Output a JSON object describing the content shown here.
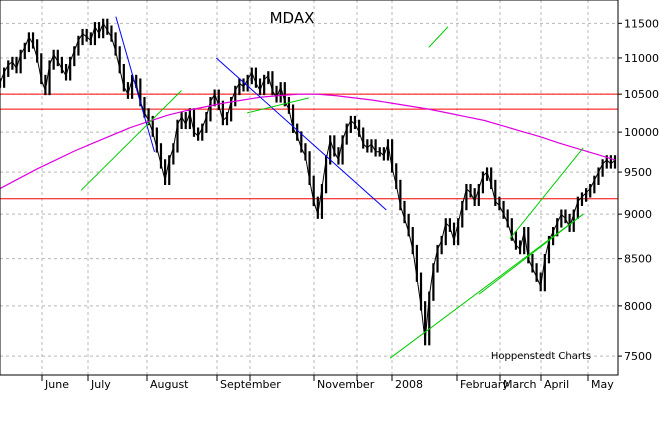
{
  "chart_data": {
    "type": "line",
    "title": "MDAX",
    "watermark": "Hoppenstedt Charts",
    "xlabel": "",
    "ylabel": "",
    "x_tick_labels": [
      "June",
      "July",
      "August",
      "September",
      "November",
      "2008",
      "February",
      "March",
      "April",
      "May"
    ],
    "y_ticks": [
      7500,
      8000,
      8500,
      9000,
      9500,
      10000,
      10500,
      11000,
      11500
    ],
    "ylim": [
      7320,
      11850
    ],
    "scale": "log",
    "grid": true,
    "series": [
      {
        "kind": "price-bars",
        "color": "#000000",
        "values": [
          10650,
          10800,
          10900,
          10950,
          10850,
          11050,
          11150,
          11300,
          11200,
          11000,
          10700,
          10550,
          10900,
          11050,
          10950,
          10850,
          10750,
          10950,
          11100,
          11250,
          11350,
          11300,
          11250,
          11450,
          11350,
          11500,
          11400,
          11300,
          11100,
          10850,
          10600,
          10500,
          10700,
          10650,
          10400,
          10250,
          10150,
          10000,
          9800,
          9600,
          9400,
          9650,
          9800,
          10100,
          10200,
          10100,
          10250,
          10000,
          9950,
          10050,
          10200,
          10400,
          10500,
          10350,
          10150,
          10200,
          10400,
          10550,
          10650,
          10600,
          10700,
          10800,
          10650,
          10550,
          10700,
          10750,
          10550,
          10450,
          10600,
          10400,
          10300,
          10050,
          9950,
          9800,
          9700,
          9400,
          9150,
          9000,
          9300,
          9650,
          9900,
          9750,
          9650,
          9900,
          10050,
          10150,
          10100,
          10000,
          9850,
          9800,
          9850,
          9750,
          9750,
          9700,
          9850,
          9550,
          9350,
          9100,
          8950,
          8800,
          8600,
          8300,
          8000,
          7650,
          8100,
          8400,
          8600,
          8700,
          8900,
          8850,
          8700,
          8900,
          9100,
          9300,
          9250,
          9150,
          9300,
          9450,
          9500,
          9350,
          9150,
          9100,
          9000,
          8900,
          8750,
          8650,
          8600,
          8800,
          8500,
          8400,
          8300,
          8200,
          8500,
          8700,
          8800,
          8900,
          9000,
          8950,
          8850,
          9000,
          9150,
          9200,
          9250,
          9300,
          9400,
          9500,
          9600,
          9650,
          9600,
          9650
        ]
      },
      {
        "kind": "moving-average",
        "color": "#e000e0",
        "values": [
          9300,
          9420,
          9540,
          9650,
          9760,
          9860,
          9960,
          10060,
          10140,
          10220,
          10280,
          10330,
          10380,
          10420,
          10460,
          10480,
          10500,
          10500,
          10480,
          10450,
          10420,
          10380,
          10340,
          10300,
          10250,
          10200,
          10150,
          10080,
          10010,
          9940,
          9860,
          9790,
          9720,
          9650
        ]
      }
    ],
    "horizontal_lines": [
      {
        "value": 10500,
        "color": "#ff0000"
      },
      {
        "value": 10300,
        "color": "#ff0000"
      },
      {
        "value": 9180,
        "color": "#ff0000"
      }
    ],
    "trendlines": [
      {
        "color": "#0000ff",
        "from": [
          0.3,
          11600
        ],
        "to": [
          0.4,
          9750
        ]
      },
      {
        "color": "#0000ff",
        "from": [
          0.56,
          11000
        ],
        "to": [
          1.0,
          9050
        ]
      },
      {
        "color": "#00cc00",
        "from": [
          0.21,
          9280
        ],
        "to": [
          0.47,
          10550
        ]
      },
      {
        "color": "#00cc00",
        "from": [
          0.64,
          10250
        ],
        "to": [
          0.8,
          10450
        ]
      },
      {
        "color": "#00cc00",
        "from": [
          1.11,
          11150
        ],
        "to": [
          1.16,
          11450
        ]
      },
      {
        "color": "#00cc00",
        "from": [
          1.01,
          7480
        ],
        "to": [
          1.51,
          9000
        ]
      },
      {
        "color": "#00cc00",
        "from": [
          1.24,
          8120
        ],
        "to": [
          1.51,
          9000
        ]
      },
      {
        "color": "#00cc00",
        "from": [
          1.32,
          8720
        ],
        "to": [
          1.51,
          9800
        ]
      }
    ]
  }
}
